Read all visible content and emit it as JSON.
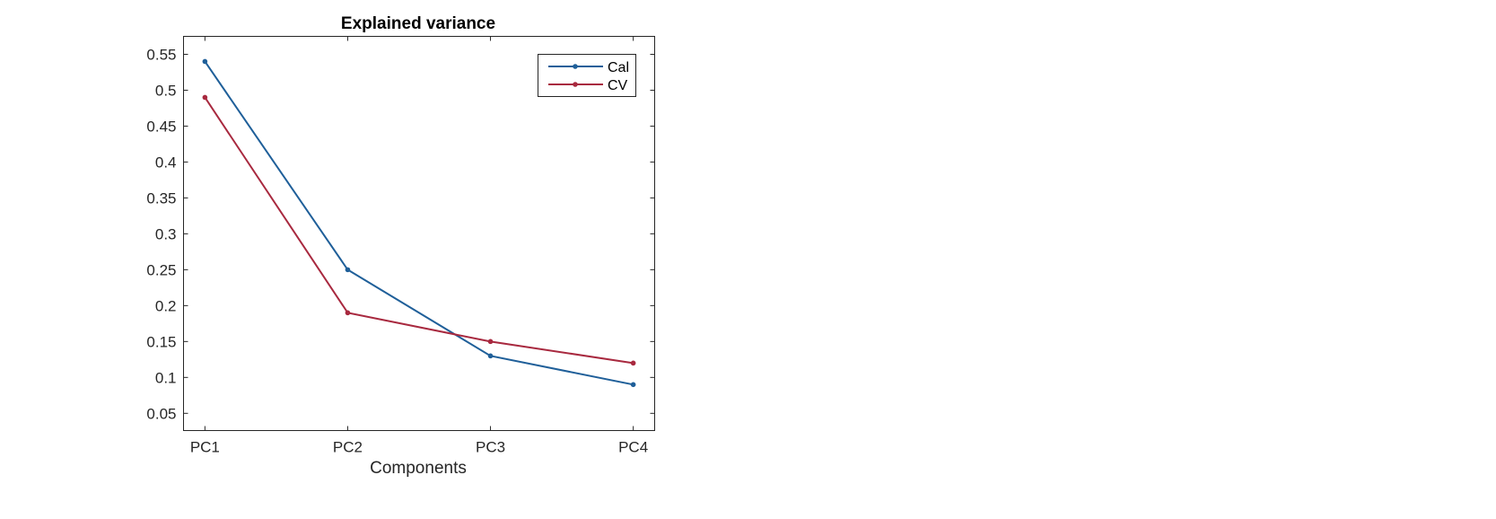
{
  "chart_data": {
    "type": "line",
    "title": "Explained variance",
    "xlabel": "Components",
    "ylabel": "",
    "categories": [
      "PC1",
      "PC2",
      "PC3",
      "PC4"
    ],
    "x": [
      1,
      2,
      3,
      4
    ],
    "xlim": [
      0.85,
      4.15
    ],
    "ylim": [
      0.026,
      0.575
    ],
    "yticks": [
      0.05,
      0.1,
      0.15,
      0.2,
      0.25,
      0.3,
      0.35,
      0.4,
      0.45,
      0.5,
      0.55
    ],
    "ytick_labels": [
      "0.05",
      "0.1",
      "0.15",
      "0.2",
      "0.25",
      "0.3",
      "0.35",
      "0.4",
      "0.45",
      "0.5",
      "0.55"
    ],
    "grid": false,
    "legend_position": "top-right",
    "series": [
      {
        "name": "Cal",
        "values": [
          0.54,
          0.25,
          0.13,
          0.09
        ],
        "color": "#1f5f99"
      },
      {
        "name": "CV",
        "values": [
          0.49,
          0.19,
          0.15,
          0.12
        ],
        "color": "#a8293f"
      }
    ]
  }
}
